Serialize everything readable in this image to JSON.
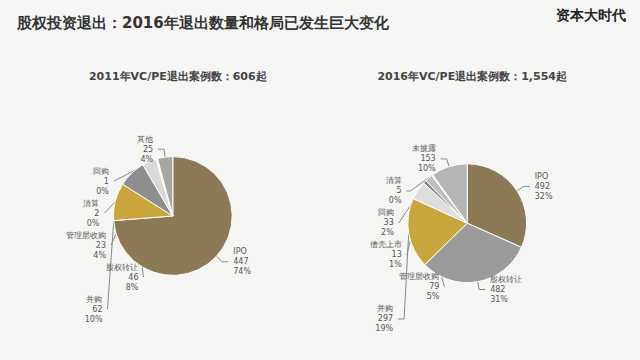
{
  "title": "股权投资退出：2016年退出数量和格局已发生巨大变化",
  "logo": "资本大时代",
  "chart_data": [
    {
      "type": "pie",
      "title": "2011年VC/PE退出案例数：606起",
      "categories": [
        "IPO",
        "并购",
        "股权转让",
        "管理层收购",
        "清算",
        "回购",
        "其他"
      ],
      "values": [
        447,
        62,
        46,
        23,
        2,
        1,
        25
      ],
      "percents": [
        74,
        10,
        8,
        4,
        0,
        0,
        4
      ],
      "percent_labels": [
        "74%",
        "10%",
        "8%",
        "4%",
        "0%",
        "0%",
        "4%"
      ],
      "colors": [
        "#8c7a56",
        "#c9a63c",
        "#8e8e8e",
        "#d9d9d9",
        "#f2f2f2",
        "#ffffff",
        "#a6a6a6"
      ],
      "data_labels": true
    },
    {
      "type": "pie",
      "title": "2016年VC/PE退出案例数：1,554起",
      "categories": [
        "IPO",
        "股权转让",
        "并购",
        "管理层收购",
        "借壳上市",
        "回购",
        "清算",
        "未披露"
      ],
      "values": [
        492,
        482,
        297,
        79,
        13,
        33,
        5,
        153
      ],
      "percents": [
        32,
        31,
        19,
        5,
        1,
        2,
        0,
        10
      ],
      "percent_labels": [
        "32%",
        "31%",
        "19%",
        "5%",
        "1%",
        "2%",
        "0%",
        "10%"
      ],
      "colors": [
        "#8c7a56",
        "#9b9b9b",
        "#c9a63c",
        "#dedede",
        "#7f7f7f",
        "#bfbfbf",
        "#f2f2f2",
        "#b5b5b5"
      ],
      "data_labels": true
    }
  ]
}
